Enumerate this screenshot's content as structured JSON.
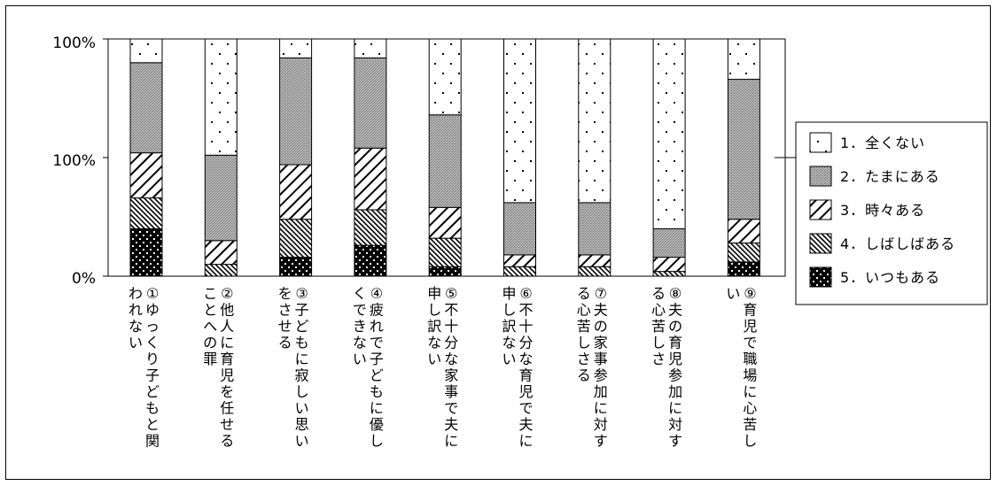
{
  "chart_data": {
    "type": "bar",
    "stacked": true,
    "categories": [
      "①ゆっくり子どもと関われない",
      "②他人に育児を任せることへの罪",
      "③子どもに寂しい思いをさせる",
      "④疲れで子どもに優しくできない",
      "⑤不十分な家事で夫に申し訳ない",
      "⑥不十分な育児で夫に申し訳ない",
      "⑦夫の家事参加に対する心苦しさる",
      "⑧夫の育児参加に対する心苦しさ",
      "⑨育児で職場に心苦しい"
    ],
    "category_lines": [
      [
        "①ゆっくり子どもと関",
        "われない"
      ],
      [
        "②他人に育児を任せる",
        "ことへの罪"
      ],
      [
        "③子どもに寂しい思い",
        "をさせる"
      ],
      [
        "④疲れで子どもに優し",
        "くできない"
      ],
      [
        "⑤不十分な家事で夫に",
        "申し訳ない"
      ],
      [
        "⑥不十分な育児で夫に",
        "申し訳ない"
      ],
      [
        "⑦夫の家事参加に対す",
        "る心苦しさる"
      ],
      [
        "⑧夫の育児参加に対す",
        "る心苦しさ"
      ],
      [
        "⑨育児で職場に心苦し",
        "い"
      ]
    ],
    "series": [
      {
        "name": "5．いつもある",
        "values": [
          20,
          0,
          8,
          13,
          4,
          0,
          0,
          0,
          6
        ]
      },
      {
        "name": "4．しばしばある",
        "values": [
          13,
          5,
          16,
          15,
          12,
          4,
          4,
          2,
          8
        ]
      },
      {
        "name": "3．時々ある",
        "values": [
          19,
          10,
          23,
          26,
          13,
          5,
          5,
          6,
          10
        ]
      },
      {
        "name": "2．たまにある",
        "values": [
          38,
          36,
          45,
          38,
          39,
          22,
          22,
          12,
          59
        ]
      },
      {
        "name": "1．全くない",
        "values": [
          10,
          49,
          8,
          8,
          32,
          69,
          69,
          80,
          17
        ]
      }
    ],
    "legend": {
      "position": "right",
      "entries": [
        "1．全くない",
        "2．たまにある",
        "3．時々ある",
        "4．しばしばある",
        "5．いつもある"
      ]
    },
    "yticks": [
      "0%",
      "100%",
      "100%"
    ],
    "ylim": [
      0,
      100
    ],
    "grid": false
  }
}
